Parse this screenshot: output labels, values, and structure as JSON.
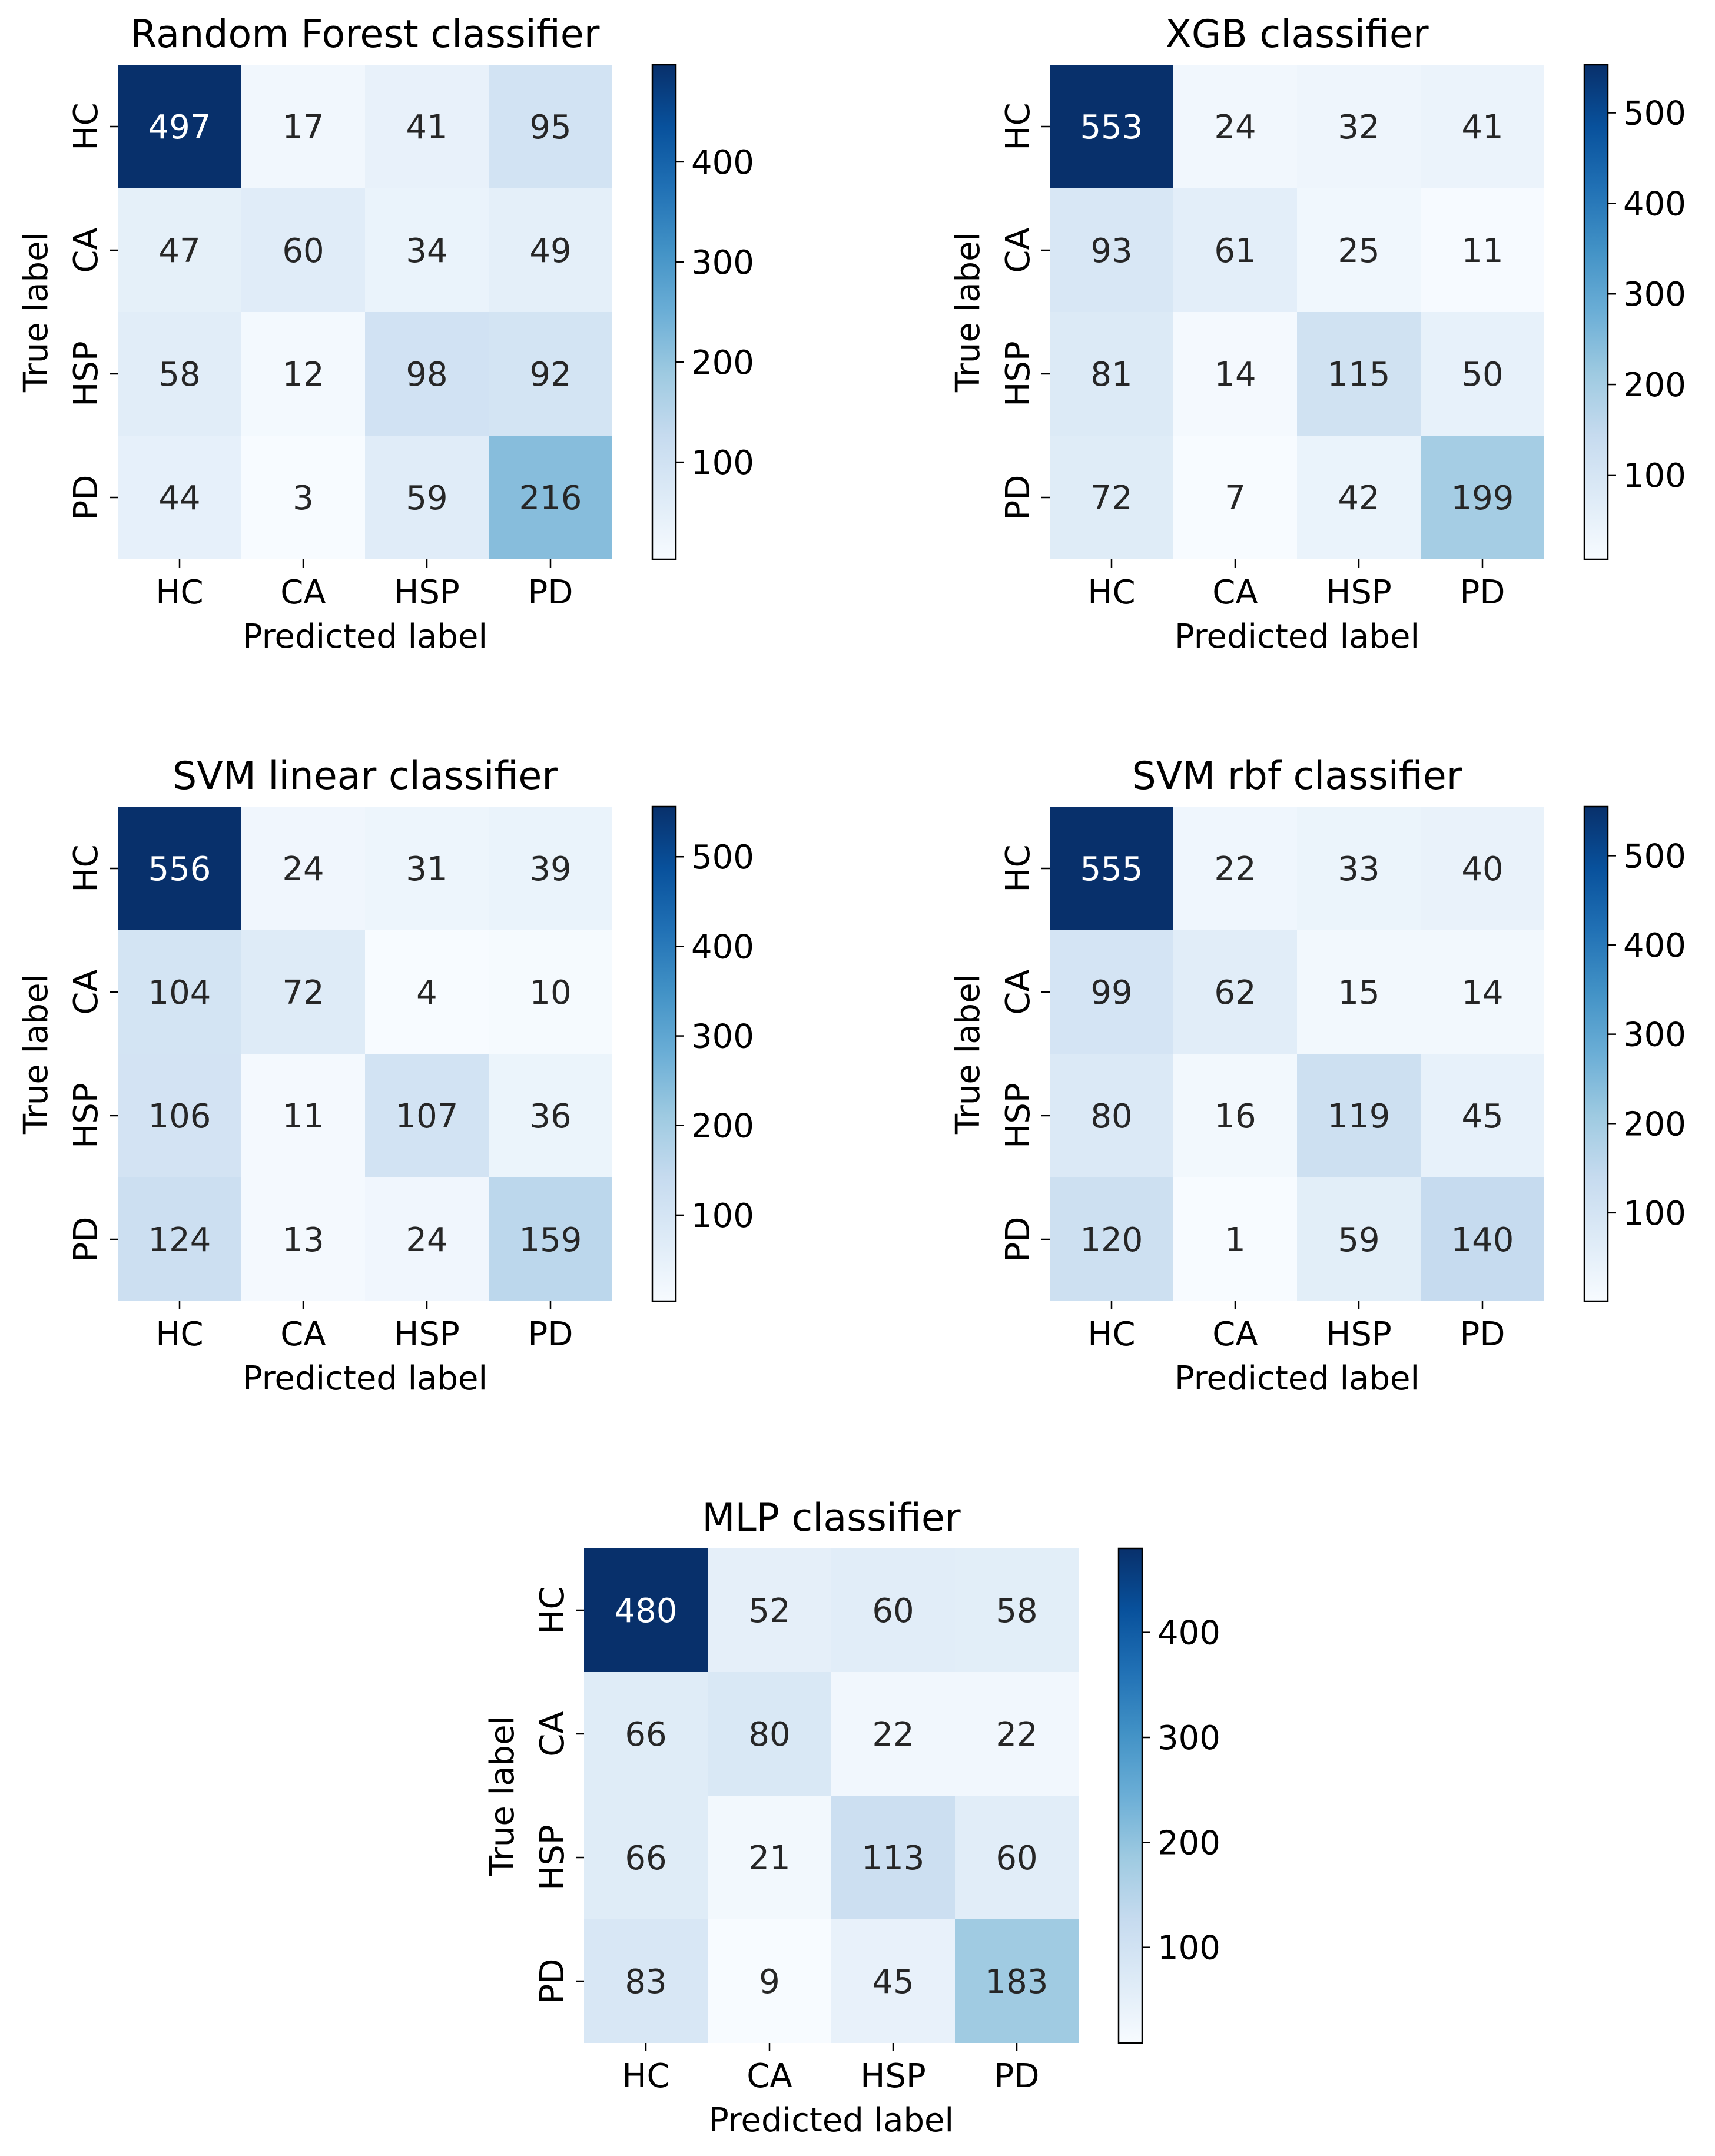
{
  "colorscale": {
    "name": "Blues",
    "stops": [
      "#f7fbff",
      "#deebf7",
      "#c6dbef",
      "#9ecae1",
      "#6baed6",
      "#4292c6",
      "#2171b5",
      "#08519c",
      "#08306b"
    ]
  },
  "chart_data": [
    {
      "type": "heatmap",
      "title": "Random Forest classifier",
      "xlabel": "Predicted label",
      "ylabel": "True label",
      "x_categories": [
        "HC",
        "CA",
        "HSP",
        "PD"
      ],
      "y_categories": [
        "HC",
        "CA",
        "HSP",
        "PD"
      ],
      "matrix": [
        [
          497,
          17,
          41,
          95
        ],
        [
          47,
          60,
          34,
          49
        ],
        [
          58,
          12,
          98,
          92
        ],
        [
          44,
          3,
          59,
          216
        ]
      ],
      "colorbar": {
        "min": 3,
        "max": 497,
        "ticks": [
          100,
          200,
          300,
          400
        ]
      }
    },
    {
      "type": "heatmap",
      "title": "XGB classifier",
      "xlabel": "Predicted label",
      "ylabel": "True label",
      "x_categories": [
        "HC",
        "CA",
        "HSP",
        "PD"
      ],
      "y_categories": [
        "HC",
        "CA",
        "HSP",
        "PD"
      ],
      "matrix": [
        [
          553,
          24,
          32,
          41
        ],
        [
          93,
          61,
          25,
          11
        ],
        [
          81,
          14,
          115,
          50
        ],
        [
          72,
          7,
          42,
          199
        ]
      ],
      "colorbar": {
        "min": 7,
        "max": 553,
        "ticks": [
          100,
          200,
          300,
          400,
          500
        ]
      }
    },
    {
      "type": "heatmap",
      "title": "SVM linear classifier",
      "xlabel": "Predicted label",
      "ylabel": "True label",
      "x_categories": [
        "HC",
        "CA",
        "HSP",
        "PD"
      ],
      "y_categories": [
        "HC",
        "CA",
        "HSP",
        "PD"
      ],
      "matrix": [
        [
          556,
          24,
          31,
          39
        ],
        [
          104,
          72,
          4,
          10
        ],
        [
          106,
          11,
          107,
          36
        ],
        [
          124,
          13,
          24,
          159
        ]
      ],
      "colorbar": {
        "min": 4,
        "max": 556,
        "ticks": [
          100,
          200,
          300,
          400,
          500
        ]
      }
    },
    {
      "type": "heatmap",
      "title": "SVM rbf classifier",
      "xlabel": "Predicted label",
      "ylabel": "True label",
      "x_categories": [
        "HC",
        "CA",
        "HSP",
        "PD"
      ],
      "y_categories": [
        "HC",
        "CA",
        "HSP",
        "PD"
      ],
      "matrix": [
        [
          555,
          22,
          33,
          40
        ],
        [
          99,
          62,
          15,
          14
        ],
        [
          80,
          16,
          119,
          45
        ],
        [
          120,
          1,
          59,
          140
        ]
      ],
      "colorbar": {
        "min": 1,
        "max": 555,
        "ticks": [
          100,
          200,
          300,
          400,
          500
        ]
      }
    },
    {
      "type": "heatmap",
      "title": "MLP classifier",
      "xlabel": "Predicted label",
      "ylabel": "True label",
      "x_categories": [
        "HC",
        "CA",
        "HSP",
        "PD"
      ],
      "y_categories": [
        "HC",
        "CA",
        "HSP",
        "PD"
      ],
      "matrix": [
        [
          480,
          52,
          60,
          58
        ],
        [
          66,
          80,
          22,
          22
        ],
        [
          66,
          21,
          113,
          60
        ],
        [
          83,
          9,
          45,
          183
        ]
      ],
      "colorbar": {
        "min": 9,
        "max": 480,
        "ticks": [
          100,
          200,
          300,
          400
        ]
      }
    }
  ]
}
